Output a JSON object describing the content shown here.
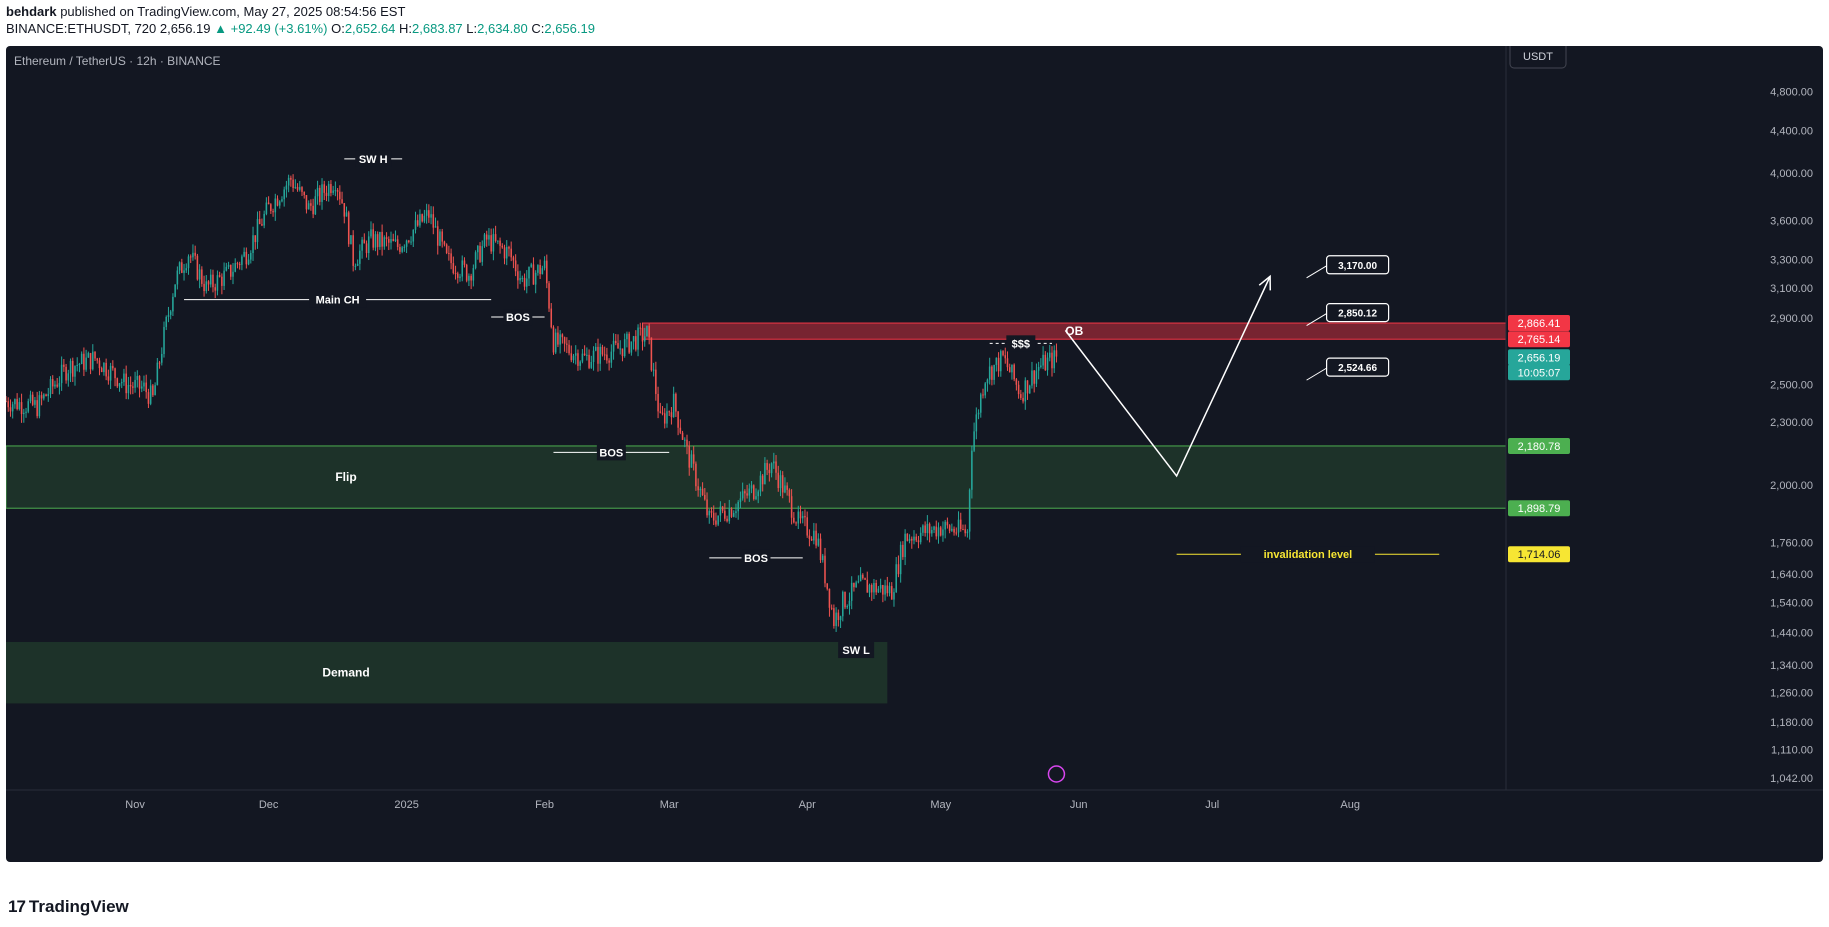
{
  "header": {
    "author": "behdark",
    "published_text": "published on TradingView.com, May 27, 2025 08:54:56 EST",
    "symbol_line": "BINANCE:ETHUSDT, 720",
    "last_price": "2,656.19",
    "change": "▲ +92.49 (+3.61%)",
    "ohlc": {
      "o_label": "O:",
      "o": "2,652.64",
      "h_label": "H:",
      "h": "2,683.87",
      "l_label": "L:",
      "l": "2,634.80",
      "c_label": "C:",
      "c": "2,656.19"
    }
  },
  "chart_title": "Ethereum / TetherUS · 12h · BINANCE",
  "currency_button": "USDT",
  "footer": {
    "brand": "TradingView",
    "mark": "17"
  },
  "colors": {
    "bg": "#131722",
    "up": "#26a69a",
    "down": "#ef5350",
    "ob": "#f23645",
    "flip": "#4caf50",
    "invalidation": "#f7e633",
    "text": "#b2b5be"
  },
  "chart_data": {
    "type": "candlestick",
    "title": "Ethereum / TetherUS · 12h · BINANCE",
    "scale": "log",
    "ylim": [
      1042,
      5100
    ],
    "y_ticks": [
      4800,
      4400,
      4000,
      3600,
      3300,
      3100,
      2900,
      2500,
      2300,
      2000,
      1760,
      1640,
      1540,
      1440,
      1340,
      1260,
      1180,
      1110,
      1042
    ],
    "y_tick_labels": [
      "4,800.00",
      "4,400.00",
      "4,000.00",
      "3,600.00",
      "3,300.00",
      "3,100.00",
      "2,900.00",
      "2,500.00",
      "2,300.00",
      "2,000.00",
      "1,760.00",
      "1,640.00",
      "1,540.00",
      "1,440.00",
      "1,340.00",
      "1,260.00",
      "1,180.00",
      "1,110.00",
      "1,042.00"
    ],
    "x_range": [
      "2024-10-03",
      "2025-09-05"
    ],
    "x_ticks": [
      {
        "date": "2024-11-01",
        "label": "Nov"
      },
      {
        "date": "2024-12-01",
        "label": "Dec"
      },
      {
        "date": "2025-01-01",
        "label": "2025"
      },
      {
        "date": "2025-02-01",
        "label": "Feb"
      },
      {
        "date": "2025-03-01",
        "label": "Mar"
      },
      {
        "date": "2025-04-01",
        "label": "Apr"
      },
      {
        "date": "2025-05-01",
        "label": "May"
      },
      {
        "date": "2025-06-01",
        "label": "Jun"
      },
      {
        "date": "2025-07-01",
        "label": "Jul"
      },
      {
        "date": "2025-08-01",
        "label": "Aug"
      }
    ],
    "price_path": [
      [
        "2024-10-03",
        2410
      ],
      [
        "2024-10-10",
        2380
      ],
      [
        "2024-10-17",
        2600
      ],
      [
        "2024-10-23",
        2650
      ],
      [
        "2024-10-30",
        2500
      ],
      [
        "2024-11-03",
        2480
      ],
      [
        "2024-11-05",
        2420
      ],
      [
        "2024-11-10",
        3150
      ],
      [
        "2024-11-13",
        3350
      ],
      [
        "2024-11-17",
        3100
      ],
      [
        "2024-11-22",
        3200
      ],
      [
        "2024-11-26",
        3350
      ],
      [
        "2024-12-01",
        3700
      ],
      [
        "2024-12-06",
        3950
      ],
      [
        "2024-12-10",
        3700
      ],
      [
        "2024-12-16",
        3950
      ],
      [
        "2024-12-18",
        3700
      ],
      [
        "2024-12-20",
        3300
      ],
      [
        "2024-12-24",
        3450
      ],
      [
        "2024-12-30",
        3400
      ],
      [
        "2025-01-06",
        3650
      ],
      [
        "2025-01-10",
        3300
      ],
      [
        "2025-01-15",
        3200
      ],
      [
        "2025-01-19",
        3450
      ],
      [
        "2025-01-24",
        3350
      ],
      [
        "2025-01-27",
        3150
      ],
      [
        "2025-02-01",
        3250
      ],
      [
        "2025-02-03",
        2750
      ],
      [
        "2025-02-10",
        2650
      ],
      [
        "2025-02-17",
        2700
      ],
      [
        "2025-02-24",
        2800
      ],
      [
        "2025-02-27",
        2300
      ],
      [
        "2025-03-02",
        2400
      ],
      [
        "2025-03-05",
        2150
      ],
      [
        "2025-03-10",
        1850
      ],
      [
        "2025-03-15",
        1900
      ],
      [
        "2025-03-20",
        1980
      ],
      [
        "2025-03-24",
        2100
      ],
      [
        "2025-03-30",
        1840
      ],
      [
        "2025-04-03",
        1790
      ],
      [
        "2025-04-07",
        1480
      ],
      [
        "2025-04-09",
        1540
      ],
      [
        "2025-04-13",
        1600
      ],
      [
        "2025-04-20",
        1580
      ],
      [
        "2025-04-23",
        1780
      ],
      [
        "2025-05-01",
        1820
      ],
      [
        "2025-05-07",
        1800
      ],
      [
        "2025-05-08",
        2200
      ],
      [
        "2025-05-11",
        2550
      ],
      [
        "2025-05-15",
        2650
      ],
      [
        "2025-05-19",
        2450
      ],
      [
        "2025-05-23",
        2600
      ],
      [
        "2025-05-27",
        2656
      ]
    ],
    "zones": [
      {
        "name": "OB",
        "from": "2025-02-23",
        "to": "2025-09-05",
        "low": 2765.14,
        "high": 2866.41
      },
      {
        "name": "Flip",
        "from": "2024-10-03",
        "to": "2025-09-05",
        "low": 1898.79,
        "high": 2180.78
      },
      {
        "name": "Demand",
        "from": "2024-10-03",
        "to": "2025-04-19",
        "low": 1230,
        "high": 1410
      }
    ],
    "annotations": [
      {
        "text": "SW H",
        "date": "2024-12-20",
        "price": 4130
      },
      {
        "text": "Main CH",
        "date": "2024-12-23",
        "price": 3020
      },
      {
        "text": "BOS",
        "date": "2025-01-25",
        "price": 2905
      },
      {
        "text": "BOS",
        "date": "2025-02-21",
        "price": 2150
      },
      {
        "text": "BOS",
        "date": "2025-03-24",
        "price": 1700
      },
      {
        "text": "SW L",
        "date": "2025-04-09",
        "price": 1385
      },
      {
        "text": "$$$",
        "date": "2025-05-18",
        "price": 2740
      },
      {
        "text": "invalidation level",
        "date": "2025-07-07",
        "price": 1714.06
      }
    ],
    "projection": [
      [
        "2025-05-29",
        2820
      ],
      [
        "2025-06-23",
        2040
      ],
      [
        "2025-07-14",
        3180
      ]
    ],
    "callouts": [
      {
        "text": "3,170.00",
        "date": "2025-07-24",
        "price": 3170
      },
      {
        "text": "2,850.12",
        "date": "2025-07-24",
        "price": 2850.12
      },
      {
        "text": "2,524.66",
        "date": "2025-07-24",
        "price": 2524.66
      }
    ],
    "price_labels": [
      {
        "text": "2,866.41",
        "price": 2866.41,
        "color": "#f23645"
      },
      {
        "text": "2,765.14",
        "price": 2765.14,
        "color": "#f23645"
      },
      {
        "text": "2,656.19",
        "price": 2656.19,
        "color": "#26a69a"
      },
      {
        "text": "10:05:07",
        "price": 2590,
        "color": "#26a69a"
      },
      {
        "text": "2,180.78",
        "price": 2180.78,
        "color": "#4caf50"
      },
      {
        "text": "1,898.79",
        "price": 1898.79,
        "color": "#4caf50"
      },
      {
        "text": "1,714.06",
        "price": 1714.06,
        "color": "#f7e633"
      }
    ]
  }
}
